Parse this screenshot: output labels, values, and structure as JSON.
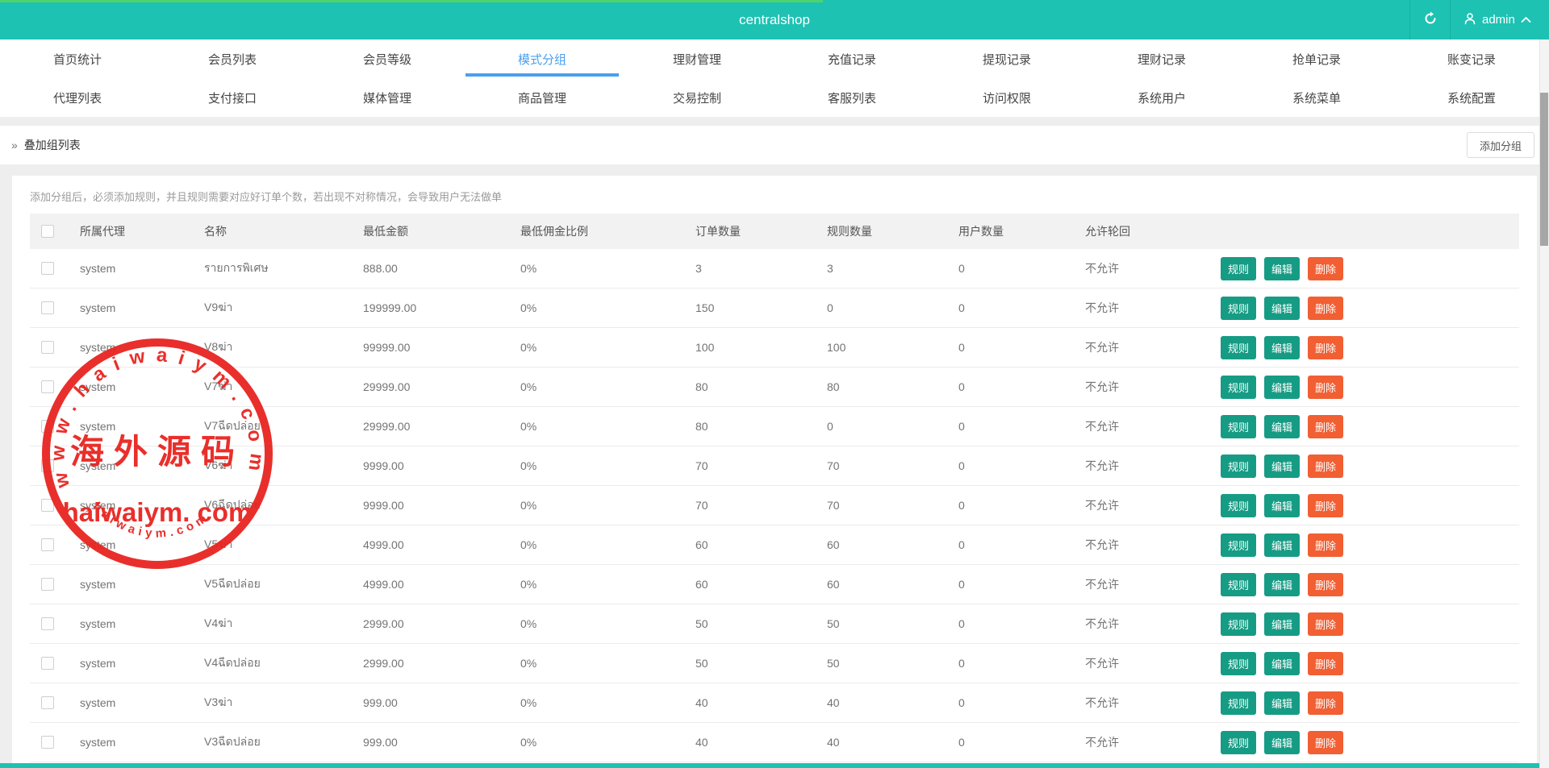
{
  "header": {
    "title": "centralshop",
    "user": "admin"
  },
  "nav": {
    "active": "模式分组",
    "row1": [
      "首页统计",
      "会员列表",
      "会员等级",
      "模式分组",
      "理财管理",
      "充值记录",
      "提现记录",
      "理财记录",
      "抢单记录",
      "账变记录"
    ],
    "row2": [
      "代理列表",
      "支付接口",
      "媒体管理",
      "商品管理",
      "交易控制",
      "客服列表",
      "访问权限",
      "系统用户",
      "系统菜单",
      "系统配置"
    ]
  },
  "breadcrumb": {
    "icon": "»",
    "title": "叠加组列表",
    "add_button": "添加分组"
  },
  "notice": {
    "text": "添加分组后，必须添加规则，并且规则需要对应好订单个数，若出现不对称情况，会导致用户无法做单"
  },
  "table": {
    "columns": [
      "所属代理",
      "名称",
      "最低金额",
      "最低佣金比例",
      "订单数量",
      "规则数量",
      "用户数量",
      "允许轮回"
    ],
    "action_labels": [
      "规则",
      "编辑",
      "删除"
    ],
    "rows": [
      {
        "agent": "system",
        "name": "รายการพิเศษ",
        "min_amount": "888.00",
        "min_commission": "0%",
        "orders": "3",
        "rules": "3",
        "users": "0",
        "recycle": "不允许"
      },
      {
        "agent": "system",
        "name": "V9ฆ่า",
        "min_amount": "199999.00",
        "min_commission": "0%",
        "orders": "150",
        "rules": "0",
        "users": "0",
        "recycle": "不允许"
      },
      {
        "agent": "system",
        "name": "V8ฆ่า",
        "min_amount": "99999.00",
        "min_commission": "0%",
        "orders": "100",
        "rules": "100",
        "users": "0",
        "recycle": "不允许"
      },
      {
        "agent": "system",
        "name": "V7ฆ่า",
        "min_amount": "29999.00",
        "min_commission": "0%",
        "orders": "80",
        "rules": "80",
        "users": "0",
        "recycle": "不允许"
      },
      {
        "agent": "system",
        "name": "V7ฉีดปล่อย",
        "min_amount": "29999.00",
        "min_commission": "0%",
        "orders": "80",
        "rules": "0",
        "users": "0",
        "recycle": "不允许"
      },
      {
        "agent": "system",
        "name": "V6ฆ่า",
        "min_amount": "9999.00",
        "min_commission": "0%",
        "orders": "70",
        "rules": "70",
        "users": "0",
        "recycle": "不允许"
      },
      {
        "agent": "system",
        "name": "V6ฉีดปล่อย",
        "min_amount": "9999.00",
        "min_commission": "0%",
        "orders": "70",
        "rules": "70",
        "users": "0",
        "recycle": "不允许"
      },
      {
        "agent": "system",
        "name": "V5ฆ่า",
        "min_amount": "4999.00",
        "min_commission": "0%",
        "orders": "60",
        "rules": "60",
        "users": "0",
        "recycle": "不允许"
      },
      {
        "agent": "system",
        "name": "V5ฉีดปล่อย",
        "min_amount": "4999.00",
        "min_commission": "0%",
        "orders": "60",
        "rules": "60",
        "users": "0",
        "recycle": "不允许"
      },
      {
        "agent": "system",
        "name": "V4ฆ่า",
        "min_amount": "2999.00",
        "min_commission": "0%",
        "orders": "50",
        "rules": "50",
        "users": "0",
        "recycle": "不允许"
      },
      {
        "agent": "system",
        "name": "V4ฉีดปล่อย",
        "min_amount": "2999.00",
        "min_commission": "0%",
        "orders": "50",
        "rules": "50",
        "users": "0",
        "recycle": "不允许"
      },
      {
        "agent": "system",
        "name": "V3ฆ่า",
        "min_amount": "999.00",
        "min_commission": "0%",
        "orders": "40",
        "rules": "40",
        "users": "0",
        "recycle": "不允许"
      },
      {
        "agent": "system",
        "name": "V3ฉีดปล่อย",
        "min_amount": "999.00",
        "min_commission": "0%",
        "orders": "40",
        "rules": "40",
        "users": "0",
        "recycle": "不允许"
      }
    ]
  },
  "watermark": {
    "arc_top": "www.haiwaiym.com",
    "center_cn": "海外源码",
    "center_en": "haiwaiym. com",
    "arc_bottom": "haiwaiym.com",
    "color": "#e8231e"
  },
  "colors": {
    "topbar_teal": "#1dc2b2",
    "active_tab_blue": "#4a9ff0",
    "button_teal": "#169c84",
    "button_orange": "#f15f33",
    "progress_green": "#4ed46a"
  }
}
